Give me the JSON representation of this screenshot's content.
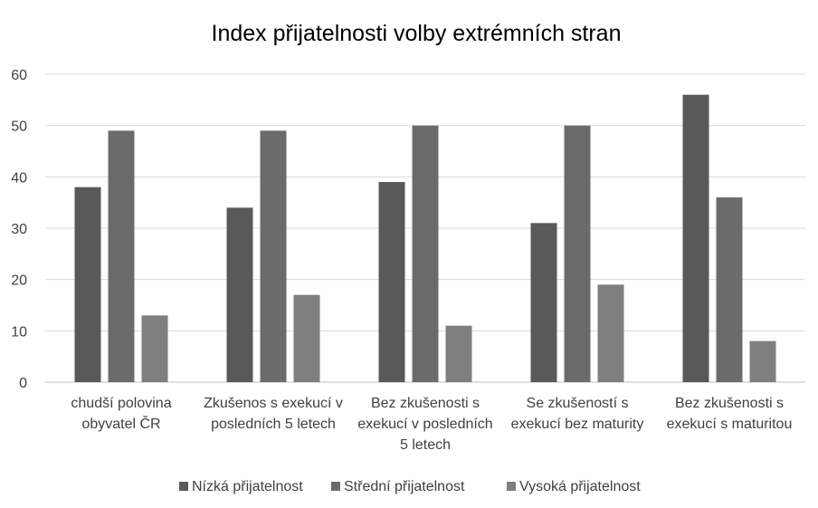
{
  "chart_data": {
    "type": "bar",
    "title": "Index přijatelnosti volby extrémních stran",
    "categories": [
      [
        "chudší polovina",
        "obyvatel ČR"
      ],
      [
        "Zkušenos s exekucí v",
        "posledních 5 letech"
      ],
      [
        "Bez zkušenosti s",
        "exekucí v posledních",
        "5 letech"
      ],
      [
        "Se zkušeností s",
        "exekucí bez maturity"
      ],
      [
        "Bez zkušenosti s",
        "exekucí s maturitou"
      ]
    ],
    "series": [
      {
        "name": "Nízká přijatelnost",
        "color": "#595959",
        "values": [
          38,
          34,
          39,
          31,
          56
        ]
      },
      {
        "name": "Střední přijatelnost",
        "color": "#6b6b6b",
        "values": [
          49,
          49,
          50,
          50,
          36
        ]
      },
      {
        "name": "Vysoká přijatelnost",
        "color": "#7f7f7f",
        "values": [
          13,
          17,
          11,
          19,
          8
        ]
      }
    ],
    "ylim": [
      0,
      60
    ],
    "yticks": [
      0,
      10,
      20,
      30,
      40,
      50,
      60
    ],
    "grid": true,
    "legend": "bottom"
  }
}
